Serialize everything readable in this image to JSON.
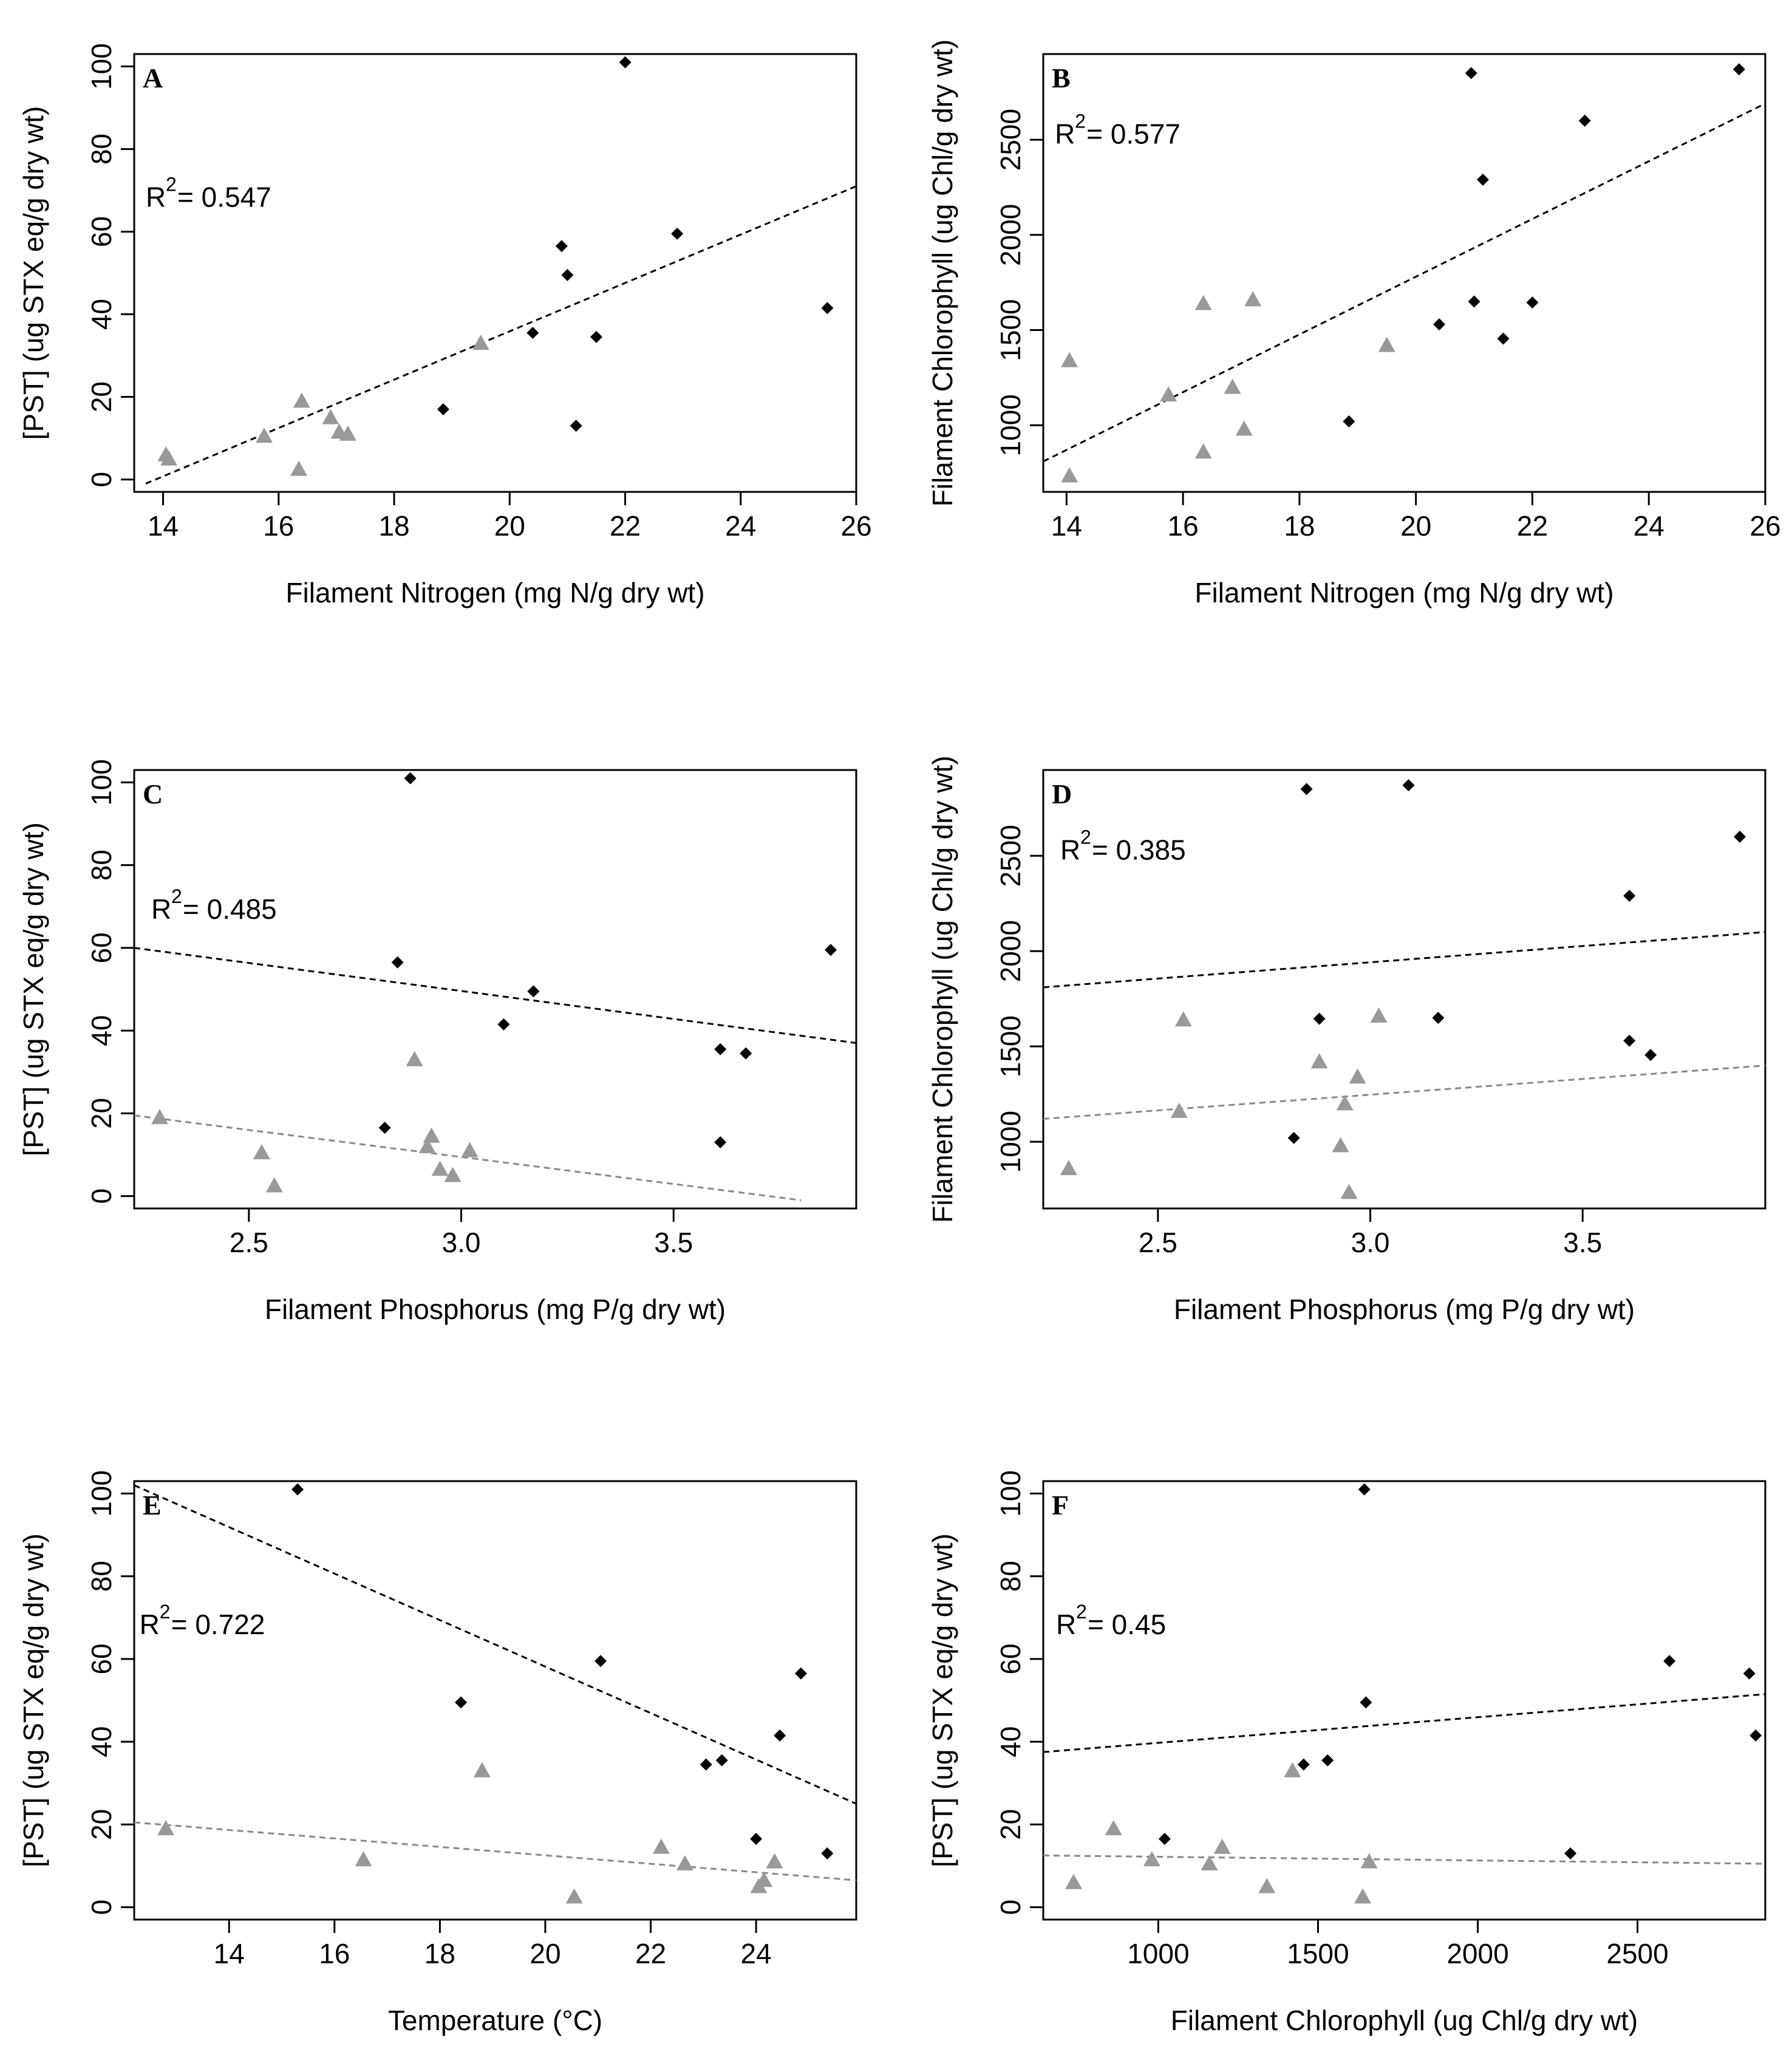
{
  "figure": {
    "description_free": true
  },
  "chart_data": [
    {
      "id": "A",
      "type": "scatter",
      "panel_label": "A",
      "xlabel": "Filament Nitrogen (mg N/g dry wt)",
      "ylabel": "[PST] (ug STX eq/g dry wt)",
      "xlim": [
        13.5,
        26
      ],
      "ylim": [
        -3,
        103
      ],
      "xticks": [
        14,
        16,
        18,
        20,
        22,
        24,
        26
      ],
      "xtick_labels": [
        "14",
        "16",
        "18",
        "20",
        "22",
        "24",
        "26"
      ],
      "yticks": [
        0,
        20,
        40,
        60,
        80,
        100
      ],
      "ytick_labels": [
        "0",
        "20",
        "40",
        "60",
        "80",
        "100"
      ],
      "annotation": {
        "r2_label": "R",
        "r2_exp": "2",
        "r2_text": " = 0.547",
        "x": 13.7,
        "y": 66
      },
      "series": [
        {
          "name": "black points",
          "marker": "diamond",
          "color": "#000000",
          "points": [
            [
              18.85,
              17
            ],
            [
              20.4,
              35.5
            ],
            [
              20.9,
              56.5
            ],
            [
              21.0,
              49.5
            ],
            [
              21.15,
              13
            ],
            [
              21.5,
              34.5
            ],
            [
              22.0,
              101
            ],
            [
              22.9,
              59.5
            ],
            [
              25.5,
              41.5
            ]
          ]
        },
        {
          "name": "gray points",
          "marker": "triangle",
          "color": "#999999",
          "points": [
            [
              14.05,
              6
            ],
            [
              14.1,
              5
            ],
            [
              15.75,
              10.5
            ],
            [
              16.35,
              2.5
            ],
            [
              16.4,
              19
            ],
            [
              16.9,
              15
            ],
            [
              17.05,
              11.5
            ],
            [
              17.2,
              11
            ],
            [
              19.5,
              33
            ]
          ]
        }
      ],
      "fit_lines": [
        {
          "color": "#000000",
          "x": [
            13.7,
            26
          ],
          "y": [
            -1,
            71
          ]
        }
      ]
    },
    {
      "id": "B",
      "type": "scatter",
      "panel_label": "B",
      "xlabel": "Filament Nitrogen (mg N/g dry wt)",
      "ylabel": "Filament Chlorophyll (ug Chl/g dry wt)",
      "xlim": [
        13.6,
        26
      ],
      "ylim": [
        650,
        2950
      ],
      "xticks": [
        14,
        16,
        18,
        20,
        22,
        24,
        26
      ],
      "xtick_labels": [
        "14",
        "16",
        "18",
        "20",
        "22",
        "24",
        "26"
      ],
      "yticks": [
        1000,
        1500,
        2000,
        2500
      ],
      "ytick_labels": [
        "1000",
        "1500",
        "2000",
        "2500"
      ],
      "annotation": {
        "r2_label": "R",
        "r2_exp": "2",
        "r2_text": " = 0.577",
        "x": 13.8,
        "y": 2480
      },
      "series": [
        {
          "name": "black points",
          "marker": "diamond",
          "color": "#000000",
          "points": [
            [
              18.85,
              1020
            ],
            [
              20.4,
              1530
            ],
            [
              20.95,
              2850
            ],
            [
              21.0,
              1650
            ],
            [
              21.15,
              2290
            ],
            [
              21.5,
              1455
            ],
            [
              22.0,
              1645
            ],
            [
              22.9,
              2600
            ],
            [
              25.55,
              2870
            ]
          ]
        },
        {
          "name": "gray points",
          "marker": "triangle",
          "color": "#999999",
          "points": [
            [
              14.05,
              1340
            ],
            [
              14.05,
              735
            ],
            [
              15.75,
              1160
            ],
            [
              16.35,
              1640
            ],
            [
              16.35,
              860
            ],
            [
              16.85,
              1200
            ],
            [
              17.05,
              980
            ],
            [
              17.2,
              1660
            ],
            [
              19.5,
              1420
            ]
          ]
        }
      ],
      "fit_lines": [
        {
          "color": "#000000",
          "x": [
            13.6,
            26
          ],
          "y": [
            810,
            2690
          ]
        }
      ]
    },
    {
      "id": "C",
      "type": "scatter",
      "panel_label": "C",
      "xlabel": "Filament Phosphorus (mg P/g dry wt)",
      "ylabel": "[PST] (ug STX eq/g dry wt)",
      "xlim": [
        2.23,
        3.93
      ],
      "ylim": [
        -3,
        103
      ],
      "xticks": [
        2.5,
        3.0,
        3.5
      ],
      "xtick_labels": [
        "2.5",
        "3.0",
        "3.5"
      ],
      "yticks": [
        0,
        20,
        40,
        60,
        80,
        100
      ],
      "ytick_labels": [
        "0",
        "20",
        "40",
        "60",
        "80",
        "100"
      ],
      "annotation": {
        "r2_label": "R",
        "r2_exp": "2",
        "r2_text": " = 0.485",
        "x": 2.27,
        "y": 67
      },
      "series": [
        {
          "name": "black points",
          "marker": "diamond",
          "color": "#000000",
          "points": [
            [
              2.82,
              16.5
            ],
            [
              2.85,
              56.5
            ],
            [
              2.88,
              101
            ],
            [
              3.1,
              41.5
            ],
            [
              3.17,
              49.5
            ],
            [
              3.61,
              35.5
            ],
            [
              3.61,
              13
            ],
            [
              3.67,
              34.5
            ],
            [
              3.87,
              59.5
            ]
          ]
        },
        {
          "name": "gray points",
          "marker": "triangle",
          "color": "#999999",
          "points": [
            [
              2.29,
              19
            ],
            [
              2.53,
              10.5
            ],
            [
              2.56,
              2.5
            ],
            [
              2.89,
              33
            ],
            [
              2.92,
              12
            ],
            [
              2.93,
              14.5
            ],
            [
              2.95,
              6.5
            ],
            [
              2.98,
              5
            ],
            [
              3.02,
              11
            ]
          ]
        }
      ],
      "fit_lines": [
        {
          "color": "#000000",
          "x": [
            2.23,
            3.93
          ],
          "y": [
            60,
            37
          ]
        },
        {
          "color": "#888888",
          "x": [
            2.23,
            3.8
          ],
          "y": [
            19.5,
            -1
          ]
        }
      ]
    },
    {
      "id": "D",
      "type": "scatter",
      "panel_label": "D",
      "xlabel": "Filament Phosphorus (mg P/g dry wt)",
      "ylabel": "Filament Chlorophyll (ug Chl/g dry wt)",
      "xlim": [
        2.23,
        3.93
      ],
      "ylim": [
        650,
        2950
      ],
      "xticks": [
        2.5,
        3.0,
        3.5
      ],
      "xtick_labels": [
        "2.5",
        "3.0",
        "3.5"
      ],
      "yticks": [
        1000,
        1500,
        2000,
        2500
      ],
      "ytick_labels": [
        "1000",
        "1500",
        "2000",
        "2500"
      ],
      "annotation": {
        "r2_label": "R",
        "r2_exp": "2",
        "r2_text": " = 0.385",
        "x": 2.27,
        "y": 2480
      },
      "series": [
        {
          "name": "black points",
          "marker": "diamond",
          "color": "#000000",
          "points": [
            [
              2.82,
              1020
            ],
            [
              2.85,
              2850
            ],
            [
              2.88,
              1645
            ],
            [
              3.09,
              2870
            ],
            [
              3.16,
              1650
            ],
            [
              3.61,
              2290
            ],
            [
              3.61,
              1530
            ],
            [
              3.66,
              1455
            ],
            [
              3.87,
              2600
            ]
          ]
        },
        {
          "name": "gray points",
          "marker": "triangle",
          "color": "#999999",
          "points": [
            [
              2.29,
              860
            ],
            [
              2.55,
              1160
            ],
            [
              2.56,
              1640
            ],
            [
              2.88,
              1420
            ],
            [
              2.93,
              980
            ],
            [
              2.94,
              1200
            ],
            [
              2.95,
              735
            ],
            [
              2.97,
              1340
            ],
            [
              3.02,
              1660
            ]
          ]
        }
      ],
      "fit_lines": [
        {
          "color": "#000000",
          "x": [
            2.23,
            3.93
          ],
          "y": [
            1810,
            2100
          ]
        },
        {
          "color": "#888888",
          "x": [
            2.23,
            3.93
          ],
          "y": [
            1120,
            1400
          ]
        }
      ]
    },
    {
      "id": "E",
      "type": "scatter",
      "panel_label": "E",
      "xlabel": "Temperature (°C)",
      "ylabel": "[PST] (ug STX eq/g dry wt)",
      "xlim": [
        12.2,
        25.9
      ],
      "ylim": [
        -3,
        103
      ],
      "xticks": [
        14,
        16,
        18,
        20,
        22,
        24
      ],
      "xtick_labels": [
        "14",
        "16",
        "18",
        "20",
        "22",
        "24"
      ],
      "yticks": [
        0,
        20,
        40,
        60,
        80,
        100
      ],
      "ytick_labels": [
        "0",
        "20",
        "40",
        "60",
        "80",
        "100"
      ],
      "annotation": {
        "r2_label": "R",
        "r2_exp": "2",
        "r2_text": " = 0.722",
        "x": 12.3,
        "y": 66
      },
      "series": [
        {
          "name": "black points",
          "marker": "diamond",
          "color": "#000000",
          "points": [
            [
              15.3,
              101
            ],
            [
              18.4,
              49.5
            ],
            [
              21.05,
              59.5
            ],
            [
              23.05,
              34.5
            ],
            [
              23.35,
              35.5
            ],
            [
              24.0,
              16.5
            ],
            [
              24.45,
              41.5
            ],
            [
              24.85,
              56.5
            ],
            [
              25.35,
              13
            ]
          ]
        },
        {
          "name": "gray points",
          "marker": "triangle",
          "color": "#999999",
          "points": [
            [
              12.8,
              19
            ],
            [
              16.55,
              11.5
            ],
            [
              18.8,
              33
            ],
            [
              20.55,
              2.5
            ],
            [
              22.2,
              14.5
            ],
            [
              22.65,
              10.5
            ],
            [
              24.05,
              5
            ],
            [
              24.15,
              6.5
            ],
            [
              24.35,
              11
            ]
          ]
        }
      ],
      "fit_lines": [
        {
          "color": "#000000",
          "x": [
            12.2,
            25.9
          ],
          "y": [
            102,
            25
          ]
        },
        {
          "color": "#888888",
          "x": [
            12.2,
            25.9
          ],
          "y": [
            20.5,
            6.5
          ]
        }
      ]
    },
    {
      "id": "F",
      "type": "scatter",
      "panel_label": "F",
      "xlabel": "Filament Chlorophyll (ug Chl/g dry wt)",
      "ylabel": "[PST] (ug STX eq/g dry wt)",
      "xlim": [
        640,
        2900
      ],
      "ylim": [
        -3,
        103
      ],
      "xticks": [
        1000,
        1500,
        2000,
        2500
      ],
      "xtick_labels": [
        "1000",
        "1500",
        "2000",
        "2500"
      ],
      "yticks": [
        0,
        20,
        40,
        60,
        80,
        100
      ],
      "ytick_labels": [
        "0",
        "20",
        "40",
        "60",
        "80",
        "100"
      ],
      "annotation": {
        "r2_label": "R",
        "r2_exp": "2",
        "r2_text": " = 0.45",
        "x": 680,
        "y": 66
      },
      "series": [
        {
          "name": "black points",
          "marker": "diamond",
          "color": "#000000",
          "points": [
            [
              1020,
              16.5
            ],
            [
              1455,
              34.5
            ],
            [
              1530,
              35.5
            ],
            [
              1645,
              101
            ],
            [
              1650,
              49.5
            ],
            [
              2290,
              13
            ],
            [
              2600,
              59.5
            ],
            [
              2850,
              56.5
            ],
            [
              2870,
              41.5
            ]
          ]
        },
        {
          "name": "gray points",
          "marker": "triangle",
          "color": "#999999",
          "points": [
            [
              735,
              6
            ],
            [
              860,
              19
            ],
            [
              980,
              11.5
            ],
            [
              1160,
              10.5
            ],
            [
              1200,
              14.5
            ],
            [
              1340,
              5
            ],
            [
              1420,
              33
            ],
            [
              1640,
              2.5
            ],
            [
              1660,
              11
            ]
          ]
        }
      ],
      "fit_lines": [
        {
          "color": "#000000",
          "x": [
            640,
            2900
          ],
          "y": [
            37.5,
            51.5
          ]
        },
        {
          "color": "#888888",
          "x": [
            640,
            2900
          ],
          "y": [
            12.5,
            10.5
          ]
        }
      ]
    }
  ]
}
